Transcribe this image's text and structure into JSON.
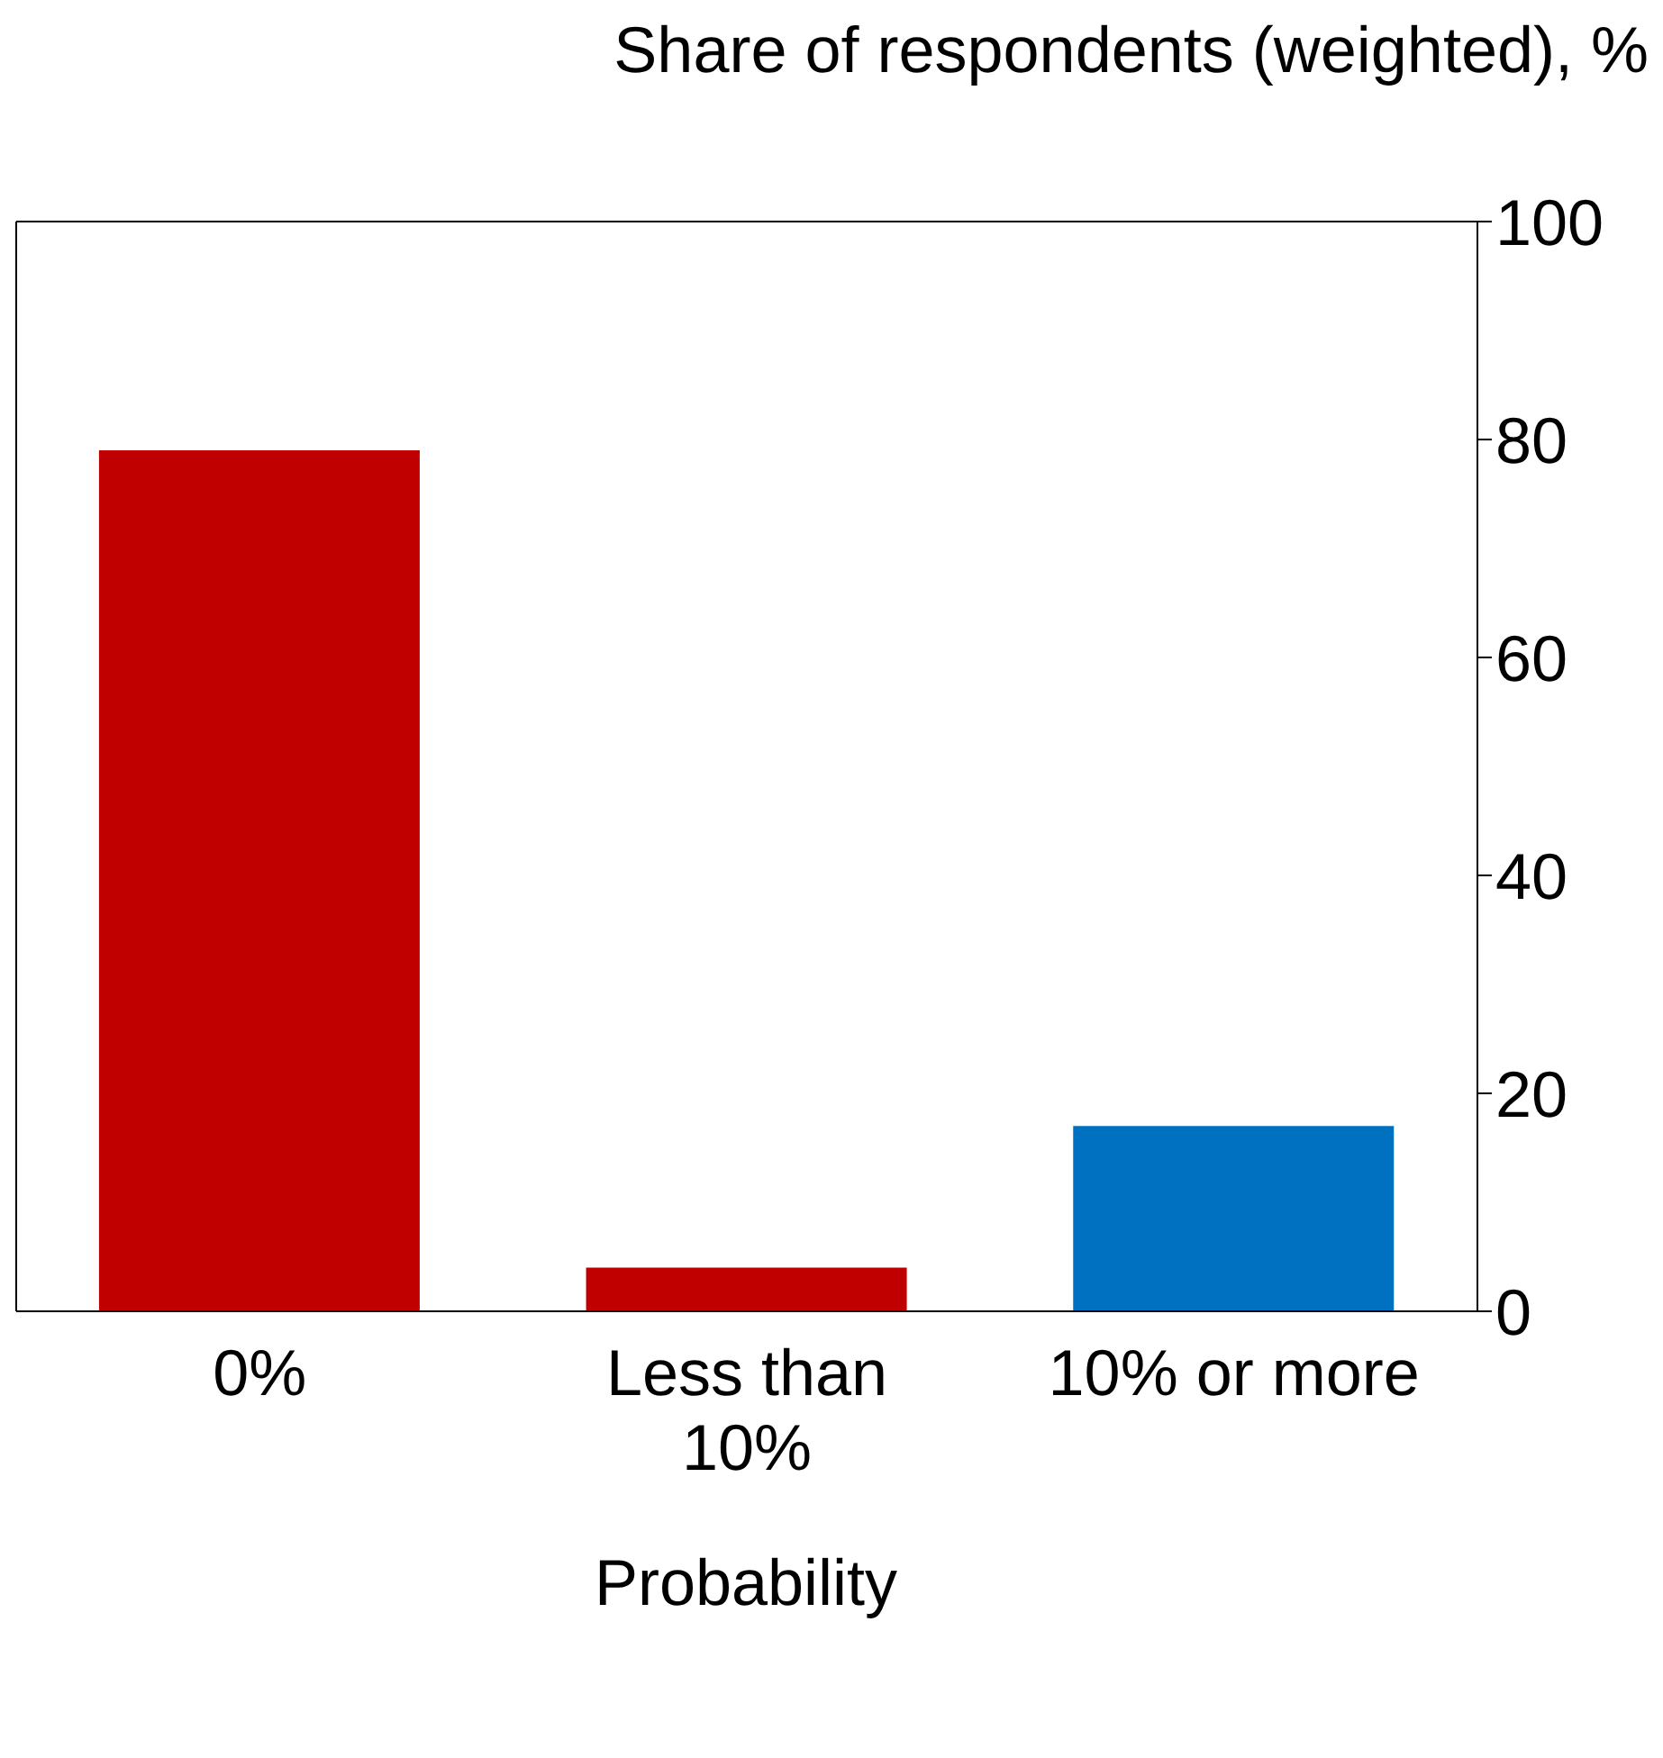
{
  "chart_data": {
    "type": "bar",
    "ylabel": "Share of respondents (weighted), %",
    "xlabel": "Probability",
    "categories": [
      "0%",
      "Less than 10%",
      "10% or more"
    ],
    "values": [
      79,
      4,
      17
    ],
    "colors": [
      "#c00000",
      "#c00000",
      "#0070c0"
    ],
    "ylim": [
      0,
      100
    ],
    "yticks": [
      0,
      20,
      40,
      60,
      80,
      100
    ],
    "grid": false
  }
}
